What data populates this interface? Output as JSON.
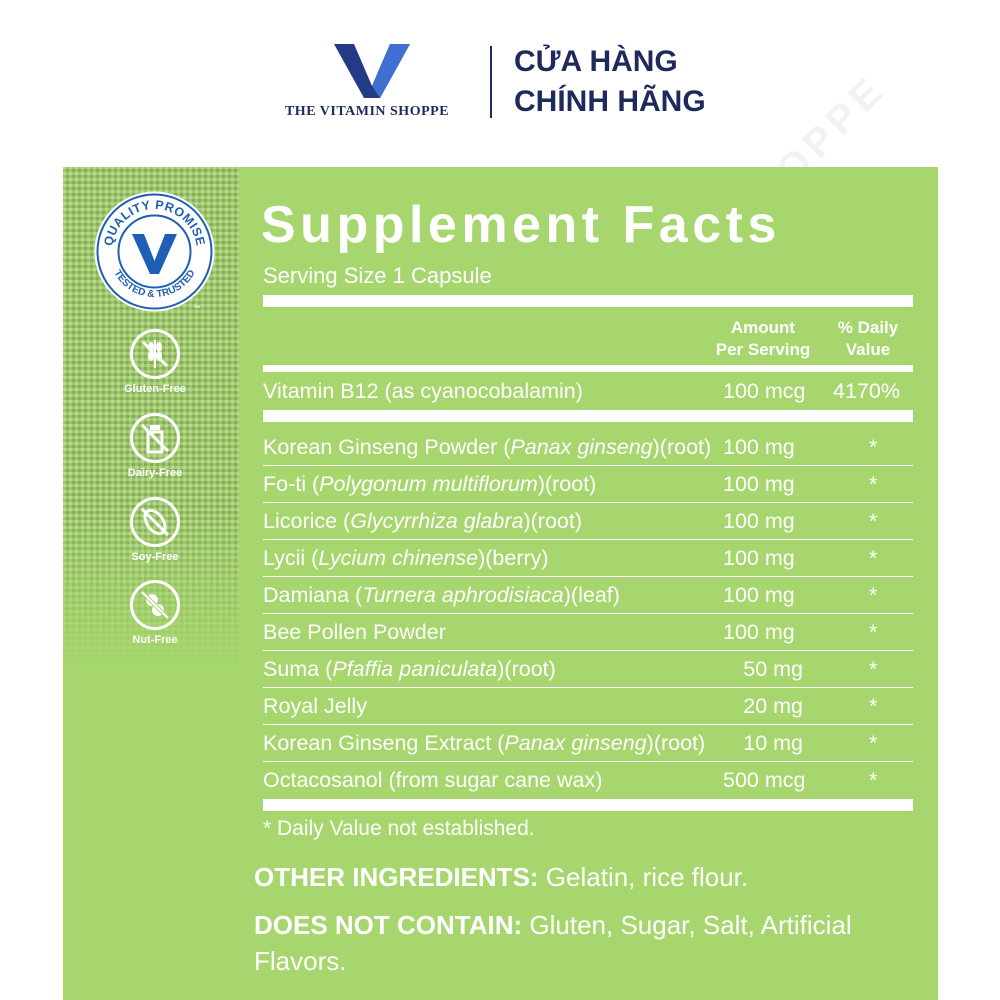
{
  "header": {
    "brand_name": "THE VITAMIN SHOPPE",
    "store_line1": "CỬA HÀNG",
    "store_line2": "CHÍNH HÃNG"
  },
  "watermark": "THE VITAMIN SHOPPE",
  "badges": {
    "quality_top": "QUALITY PROMISE",
    "quality_bottom": "TESTED & TRUSTED",
    "trademark": "™",
    "icons": [
      {
        "label": "Gluten-Free",
        "icon": "wheat-icon"
      },
      {
        "label": "Dairy-Free",
        "icon": "milk-bottle-icon"
      },
      {
        "label": "Soy-Free",
        "icon": "soybean-icon"
      },
      {
        "label": "Nut-Free",
        "icon": "peanut-icon"
      }
    ]
  },
  "facts": {
    "title": "Supplement Facts",
    "serving_size": "Serving Size 1 Capsule",
    "col_amount_1": "Amount",
    "col_amount_2": "Per Serving",
    "col_dv_1": "% Daily",
    "col_dv_2": "Value",
    "vitamin": {
      "name": "Vitamin B12 (as cyanocobalamin)",
      "amount": "100 mcg",
      "dv": "4170%"
    },
    "ingredients": [
      {
        "name": "Korean Ginseng Powder (",
        "latin": "Panax ginseng",
        "part": ")(root)",
        "amount": "100 mg",
        "dv": "*"
      },
      {
        "name": "Fo-ti (",
        "latin": "Polygonum multiflorum",
        "part": ")(root)",
        "amount": "100 mg",
        "dv": "*"
      },
      {
        "name": "Licorice (",
        "latin": "Glycyrrhiza glabra",
        "part": ")(root)",
        "amount": "100 mg",
        "dv": "*"
      },
      {
        "name": "Lycii (",
        "latin": "Lycium chinense",
        "part": ")(berry)",
        "amount": "100 mg",
        "dv": "*"
      },
      {
        "name": "Damiana (",
        "latin": "Turnera aphrodisiaca",
        "part": ")(leaf)",
        "amount": "100 mg",
        "dv": "*"
      },
      {
        "name": "Bee Pollen Powder",
        "latin": "",
        "part": "",
        "amount": "100 mg",
        "dv": "*"
      },
      {
        "name": "Suma (",
        "latin": "Pfaffia paniculata",
        "part": ")(root)",
        "amount": "50 mg",
        "dv": "*"
      },
      {
        "name": "Royal Jelly",
        "latin": "",
        "part": "",
        "amount": "20 mg",
        "dv": "*"
      },
      {
        "name": "Korean Ginseng Extract (",
        "latin": "Panax ginseng",
        "part": ")(root)",
        "amount": "10 mg",
        "dv": "*"
      },
      {
        "name": "Octacosanol (from sugar cane wax)",
        "latin": "",
        "part": "",
        "amount": "500 mcg",
        "dv": "*"
      }
    ],
    "footnote": "* Daily Value not established."
  },
  "other_ingredients": {
    "label": "OTHER INGREDIENTS:",
    "text": " Gelatin, rice flour."
  },
  "does_not_contain": {
    "label": "DOES NOT CONTAIN:",
    "text": " Gluten, Sugar, Salt, Artificial Flavors."
  },
  "colors": {
    "panel": "#a6d66d",
    "navy": "#1f2a5c",
    "logo_blue": "#1e5fb3",
    "white": "#ffffff"
  }
}
